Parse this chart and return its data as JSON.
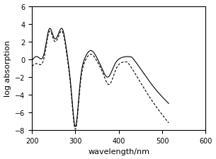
{
  "xlabel": "wavelength/nm",
  "ylabel": "log absorption",
  "xlim": [
    200,
    600
  ],
  "ylim": [
    -8,
    6
  ],
  "xticks": [
    200,
    300,
    400,
    500,
    600
  ],
  "yticks": [
    -8,
    -6,
    -4,
    -2,
    0,
    2,
    4,
    6
  ],
  "solid_color": "black",
  "dashed_color": "black",
  "background_color": "white",
  "figsize": [
    3.05,
    2.26
  ],
  "dpi": 100
}
